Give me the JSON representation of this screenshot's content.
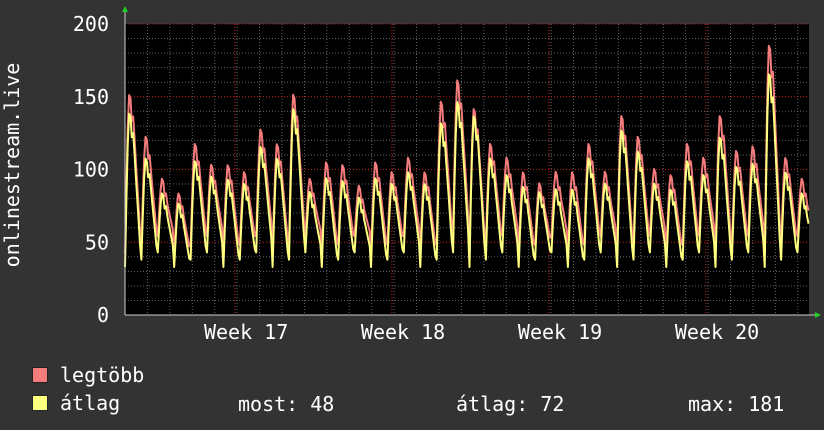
{
  "chart_data": {
    "type": "line",
    "ylabel": "onlinestream.live",
    "ylim": [
      0,
      200
    ],
    "yticks": [
      0,
      50,
      100,
      150,
      200
    ],
    "xticks": [
      {
        "label": "Week 17",
        "at": 5.4
      },
      {
        "label": "Week 18",
        "at": 12.4
      },
      {
        "label": "Week 19",
        "at": 19.4
      },
      {
        "label": "Week 20",
        "at": 26.4
      }
    ],
    "xlim": [
      0,
      30.5
    ],
    "series": [
      {
        "name": "legtöbb",
        "color": "#f47c7c",
        "peaks": [
          155,
          125,
          95,
          85,
          120,
          105,
          105,
          100,
          130,
          120,
          155,
          95,
          107,
          105,
          90,
          107,
          100,
          110,
          100,
          150,
          165,
          145,
          120,
          110,
          100,
          92,
          100,
          100,
          120,
          100,
          140,
          125,
          102,
          98,
          120,
          110,
          140,
          115,
          118,
          190,
          110,
          95
        ]
      },
      {
        "name": "átlag",
        "color": "#ffff80",
        "peaks": [
          142,
          110,
          85,
          78,
          108,
          97,
          95,
          92,
          118,
          110,
          145,
          86,
          96,
          94,
          82,
          96,
          92,
          100,
          92,
          135,
          150,
          140,
          110,
          98,
          90,
          86,
          88,
          88,
          110,
          92,
          130,
          115,
          92,
          88,
          108,
          98,
          125,
          104,
          106,
          170,
          100,
          85
        ]
      }
    ]
  },
  "legend": {
    "max_label": "legtöbb",
    "avg_label": "átlag",
    "most_text": "most: 48",
    "atlag_text": "átlag: 72",
    "max_text": "max: 181"
  },
  "colors": {
    "background": "#333333",
    "plot_bg": "#000000",
    "grid_major": "#c81e1e",
    "grid_minor": "#646464",
    "axis": "#cccccc",
    "arrow": "#22cc22",
    "max_line": "#f47c7c",
    "avg_line": "#ffff80"
  }
}
